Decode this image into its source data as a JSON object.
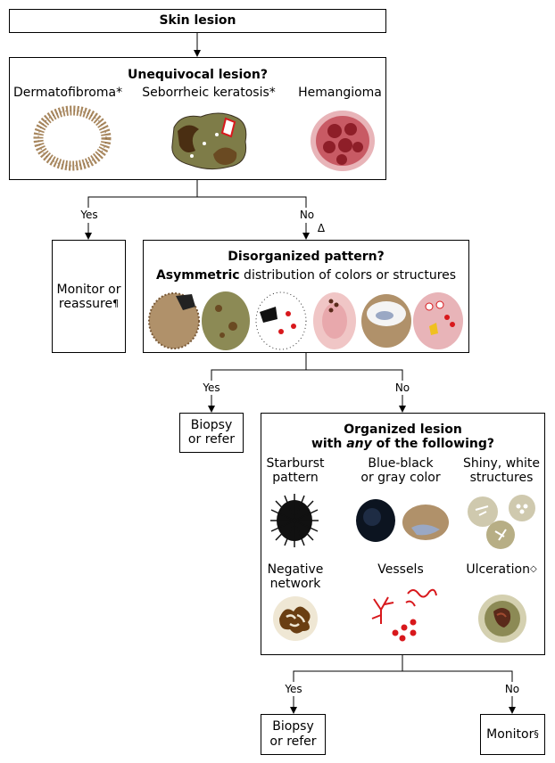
{
  "start": {
    "label": "Skin lesion"
  },
  "q1": {
    "title": "Unequivocal lesion?",
    "items": [
      {
        "label": "Dermatofibroma",
        "mark": "*"
      },
      {
        "label": "Seborrheic keratosis",
        "mark": "*"
      },
      {
        "label": "Hemangioma",
        "mark": ""
      }
    ]
  },
  "branch1": {
    "yes": "Yes",
    "no": "No",
    "no_mark": "Δ"
  },
  "monitor_reassure": {
    "line1": "Monitor or",
    "line2": "reassure",
    "mark": "¶"
  },
  "q2": {
    "title": "Disorganized pattern?",
    "subtitle_bold": "Asymmetric",
    "subtitle_rest": " distribution of colors or structures"
  },
  "branch2": {
    "yes": "Yes",
    "no": "No"
  },
  "biopsy1": {
    "line1": "Biopsy",
    "line2": "or refer"
  },
  "q3": {
    "line1": "Organized lesion",
    "line2_pre": "with ",
    "line2_em": "any",
    "line2_post": " of the following?",
    "features": [
      {
        "line1": "Starburst",
        "line2": "pattern",
        "mark": ""
      },
      {
        "line1": "Blue-black",
        "line2": "or gray color",
        "mark": ""
      },
      {
        "line1": "Shiny, white",
        "line2": "structures",
        "mark": ""
      },
      {
        "line1": "Negative",
        "line2": "network",
        "mark": ""
      },
      {
        "line1": "Vessels",
        "line2": "",
        "mark": ""
      },
      {
        "line1": "Ulceration",
        "line2": "",
        "mark": "◇"
      }
    ]
  },
  "branch3": {
    "yes": "Yes",
    "no": "No"
  },
  "biopsy2": {
    "line1": "Biopsy",
    "line2": "or refer"
  },
  "monitor": {
    "label": "Monitor",
    "mark": "§"
  },
  "colors": {
    "line": "#000000",
    "tan": "#a8875e",
    "olive": "#8c8a55",
    "red": "#d8181c",
    "pink": "#e8b4b8"
  }
}
